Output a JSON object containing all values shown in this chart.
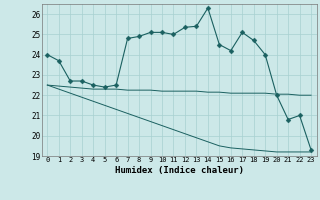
{
  "xlabel": "Humidex (Indice chaleur)",
  "xlim": [
    -0.5,
    23.5
  ],
  "ylim": [
    19,
    26.5
  ],
  "yticks": [
    19,
    20,
    21,
    22,
    23,
    24,
    25,
    26
  ],
  "xticks": [
    0,
    1,
    2,
    3,
    4,
    5,
    6,
    7,
    8,
    9,
    10,
    11,
    12,
    13,
    14,
    15,
    16,
    17,
    18,
    19,
    20,
    21,
    22,
    23
  ],
  "bg_color": "#cce8e8",
  "grid_color": "#a8d0d0",
  "line_color": "#1a6060",
  "line1_x": [
    0,
    1,
    2,
    3,
    4,
    5,
    6,
    7,
    8,
    9,
    10,
    11,
    12,
    13,
    14,
    15,
    16,
    17,
    18,
    19,
    20,
    21,
    22,
    23
  ],
  "line1_y": [
    24.0,
    23.7,
    22.7,
    22.7,
    22.5,
    22.4,
    22.5,
    24.8,
    24.9,
    25.1,
    25.1,
    25.0,
    25.35,
    25.4,
    26.3,
    24.5,
    24.2,
    25.1,
    24.7,
    24.0,
    22.0,
    20.8,
    21.0,
    19.3
  ],
  "line2_x": [
    0,
    1,
    2,
    3,
    4,
    5,
    6,
    7,
    8,
    9,
    10,
    11,
    12,
    13,
    14,
    15,
    16,
    17,
    18,
    19,
    20,
    21,
    22,
    23
  ],
  "line2_y": [
    22.5,
    22.45,
    22.4,
    22.35,
    22.3,
    22.3,
    22.3,
    22.25,
    22.25,
    22.25,
    22.2,
    22.2,
    22.2,
    22.2,
    22.15,
    22.15,
    22.1,
    22.1,
    22.1,
    22.1,
    22.05,
    22.05,
    22.0,
    22.0
  ],
  "line3_x": [
    0,
    1,
    2,
    3,
    4,
    5,
    6,
    7,
    8,
    9,
    10,
    11,
    12,
    13,
    14,
    15,
    16,
    17,
    18,
    19,
    20,
    21,
    22,
    23
  ],
  "line3_y": [
    22.5,
    22.3,
    22.1,
    21.9,
    21.7,
    21.5,
    21.3,
    21.1,
    20.9,
    20.7,
    20.5,
    20.3,
    20.1,
    19.9,
    19.7,
    19.5,
    19.4,
    19.35,
    19.3,
    19.25,
    19.2,
    19.2,
    19.2,
    19.2
  ],
  "markersize": 2.5
}
